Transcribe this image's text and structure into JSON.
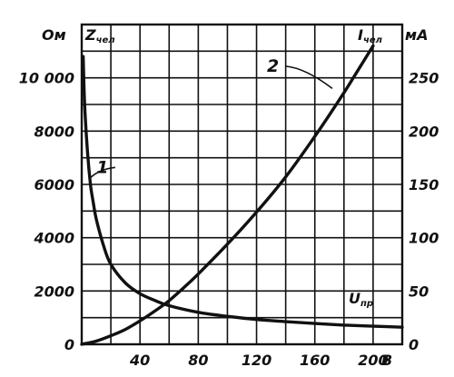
{
  "chart_data": {
    "type": "line",
    "x_axis": {
      "label_main": "U",
      "label_sub": "пр",
      "unit": "В",
      "range": [
        0,
        220
      ],
      "ticks": [
        0,
        40,
        80,
        120,
        160,
        200
      ],
      "tick_labels": [
        "40",
        "80",
        "120",
        "160",
        "200"
      ],
      "gridlines": [
        0,
        20,
        40,
        60,
        80,
        100,
        120,
        140,
        160,
        180,
        200,
        220
      ]
    },
    "y_left": {
      "label_main": "Z",
      "label_sub": "чел",
      "unit": "Ом",
      "range": [
        0,
        12000
      ],
      "ticks": [
        0,
        2000,
        4000,
        6000,
        8000,
        10000
      ],
      "tick_labels": [
        "0",
        "2000",
        "4000",
        "6000",
        "8000",
        "10 000"
      ],
      "gridlines": [
        0,
        1000,
        2000,
        3000,
        4000,
        5000,
        6000,
        7000,
        8000,
        9000,
        10000,
        11000,
        12000
      ]
    },
    "y_right": {
      "label_main": "I",
      "label_sub": "чел",
      "unit": "мА",
      "range": [
        0,
        300
      ],
      "ticks": [
        0,
        50,
        100,
        150,
        200,
        250
      ],
      "tick_labels": [
        "0",
        "50",
        "100",
        "150",
        "200",
        "250"
      ]
    },
    "grid": true,
    "series": [
      {
        "name": "1",
        "axis": "left",
        "x": [
          1,
          2,
          4,
          6,
          8,
          10,
          15,
          20,
          30,
          40,
          50,
          60,
          80,
          100,
          120,
          140,
          160,
          180,
          200,
          220
        ],
        "y": [
          10800,
          9000,
          7200,
          6000,
          5300,
          4700,
          3700,
          3000,
          2300,
          1900,
          1650,
          1450,
          1200,
          1050,
          930,
          850,
          780,
          720,
          680,
          640
        ]
      },
      {
        "name": "2",
        "axis": "right",
        "x": [
          0,
          10,
          20,
          30,
          40,
          50,
          60,
          70,
          80,
          100,
          120,
          140,
          160,
          180,
          190,
          200
        ],
        "y": [
          0,
          3,
          8,
          14,
          22,
          31,
          41,
          53,
          66,
          94,
          124,
          157,
          195,
          236,
          258,
          280
        ]
      }
    ],
    "curve_labels": [
      {
        "series": "1",
        "text": "1",
        "anchor": [
          5,
          6200
        ],
        "label_at": [
          18,
          6500
        ]
      },
      {
        "series": "2",
        "text": "2",
        "anchor": [
          172,
          9600
        ],
        "label_at": [
          135,
          10300
        ]
      }
    ]
  }
}
